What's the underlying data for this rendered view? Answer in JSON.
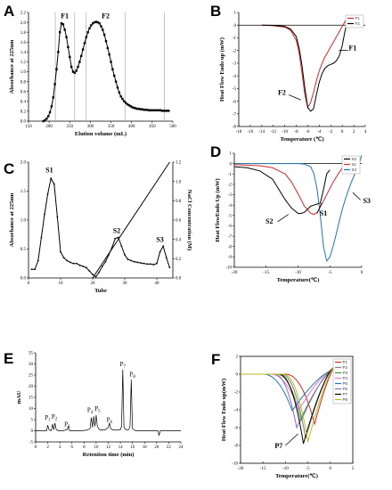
{
  "chart_data": [
    {
      "id": "A",
      "panel_label": "A",
      "type": "scatter",
      "xlabel": "Elution volume (mL)",
      "ylabel": "Absorbance at 225nm",
      "xlim": [
        150,
        500
      ],
      "ylim": [
        0,
        2.2
      ],
      "xticks": [
        150,
        200,
        250,
        300,
        350,
        400,
        450,
        500
      ],
      "yticks": [
        0.0,
        0.2,
        0.4,
        0.6,
        0.8,
        1.0,
        1.2,
        1.4,
        1.6,
        1.8,
        2.0,
        2.2
      ],
      "vlines": [
        215,
        262,
        290,
        385,
        480
      ],
      "annotations": [
        {
          "text": "F1",
          "x": 238,
          "y": 2.08
        },
        {
          "text": "F2",
          "x": 337,
          "y": 2.08
        }
      ],
      "series": [
        {
          "color": "#000000",
          "x": [
            186,
            190,
            194,
            198,
            202,
            206,
            210,
            214,
            218,
            222,
            226,
            230,
            234,
            238,
            242,
            246,
            250,
            254,
            258,
            262,
            266,
            270,
            274,
            278,
            282,
            286,
            290,
            294,
            298,
            302,
            306,
            310,
            314,
            318,
            322,
            326,
            330,
            334,
            338,
            342,
            346,
            350,
            354,
            358,
            362,
            366,
            370,
            374,
            378,
            382,
            386,
            390,
            394,
            398,
            402,
            406,
            410,
            414,
            418,
            422,
            426,
            430,
            434,
            438,
            442,
            446,
            450,
            454,
            458,
            462,
            466,
            470,
            474,
            478,
            482,
            486,
            490
          ],
          "y": [
            0.0,
            0.02,
            0.05,
            0.1,
            0.18,
            0.3,
            0.48,
            0.75,
            1.05,
            1.4,
            1.8,
            1.98,
            1.96,
            1.85,
            1.7,
            1.5,
            1.3,
            1.1,
            1.0,
            0.98,
            1.02,
            1.1,
            1.2,
            1.32,
            1.45,
            1.58,
            1.7,
            1.8,
            1.88,
            1.94,
            1.98,
            2.0,
            2.01,
            2.0,
            1.98,
            1.92,
            1.85,
            1.75,
            1.62,
            1.48,
            1.35,
            1.2,
            1.05,
            0.92,
            0.8,
            0.68,
            0.58,
            0.5,
            0.45,
            0.4,
            0.37,
            0.34,
            0.32,
            0.3,
            0.28,
            0.27,
            0.26,
            0.25,
            0.25,
            0.24,
            0.24,
            0.23,
            0.23,
            0.23,
            0.22,
            0.22,
            0.22,
            0.22,
            0.22,
            0.22,
            0.22,
            0.22,
            0.21,
            0.21,
            0.21,
            0.21,
            0.21
          ]
        }
      ]
    },
    {
      "id": "B",
      "panel_label": "B",
      "type": "line",
      "xlabel": "Temperature (℃)",
      "ylabel": "Heat Flow Endo up (mW)",
      "xlim": [
        -18,
        4
      ],
      "ylim": [
        -8,
        1
      ],
      "xticks": [
        -18,
        -16,
        -14,
        -12,
        -10,
        -8,
        -6,
        -4,
        -2,
        0,
        2,
        4
      ],
      "yticks": [
        -8,
        -7,
        -6,
        -5,
        -4,
        -3,
        -2,
        -1,
        0,
        1
      ],
      "legend": [
        "F1",
        "F2"
      ],
      "legend_position": "top-right",
      "annotations": [
        {
          "text": "F1",
          "x": 1.8,
          "y": -2.0
        },
        {
          "text": "F2",
          "x": -10.5,
          "y": -5.5
        }
      ],
      "series": [
        {
          "name": "F1",
          "color": "#d62728",
          "x": [
            -14,
            -12,
            -10,
            -9,
            -8,
            -7.5,
            -7,
            -6.5,
            -6,
            -5.5,
            -5,
            -4.5,
            -4,
            -3.5,
            -3,
            -2.5,
            -2,
            -1.5,
            -1,
            -0.5,
            0,
            0.5,
            1
          ],
          "y": [
            0,
            -0.05,
            -0.15,
            -0.4,
            -1.2,
            -2.2,
            -3.8,
            -5.5,
            -6.5,
            -6.1,
            -5.3,
            -4.4,
            -3.6,
            -3.0,
            -2.5,
            -2.1,
            -1.7,
            -1.3,
            -0.9,
            -0.5,
            -0.1,
            0.3,
            0.6
          ]
        },
        {
          "name": "F2",
          "color": "#000000",
          "x": [
            -14,
            -12,
            -10,
            -9,
            -8,
            -7.5,
            -7,
            -6.5,
            -6,
            -5.5,
            -5,
            -4.5,
            -4,
            -3.5,
            -3,
            -2.5,
            -2,
            -1.5,
            -1,
            -0.5,
            0,
            0.5,
            1
          ],
          "y": [
            0,
            -0.02,
            -0.1,
            -0.3,
            -0.9,
            -1.8,
            -3.2,
            -5.0,
            -6.5,
            -6.8,
            -6.6,
            -5.5,
            -4.5,
            -3.8,
            -3.4,
            -3.2,
            -3.1,
            -3.0,
            -2.8,
            -2.4,
            -1.6,
            -0.4,
            0.4
          ]
        }
      ]
    },
    {
      "id": "C",
      "panel_label": "C",
      "type": "line",
      "xlabel": "Tube",
      "ylabel": "Absorbance at 225nm",
      "ylabel_right": "NaCl Concentration (M)",
      "xlim": [
        0,
        45
      ],
      "ylim": [
        0,
        2.0
      ],
      "ylim_right": [
        0,
        1.2
      ],
      "xticks": [
        0,
        10,
        20,
        30,
        40
      ],
      "yticks": [
        0.0,
        0.5,
        1.0,
        1.5,
        2.0
      ],
      "yticks_right": [
        0.0,
        0.2,
        0.4,
        0.6,
        0.8,
        1.0,
        1.2
      ],
      "annotations": [
        {
          "text": "S1",
          "x": 6.5,
          "y": 1.82
        },
        {
          "text": "S2",
          "x": 27.5,
          "y": 0.78
        },
        {
          "text": "S3",
          "x": 41.0,
          "y": 0.62
        }
      ],
      "series": [
        {
          "color": "#000000",
          "x": [
            1,
            2,
            3,
            4,
            5,
            6,
            7,
            8,
            9,
            10,
            11,
            12,
            13,
            14,
            15,
            16,
            17,
            18,
            19,
            20,
            21,
            22,
            23,
            24,
            25,
            26,
            27,
            28,
            29,
            30,
            31,
            32,
            33,
            34,
            35,
            36,
            37,
            38,
            39,
            40,
            41,
            42,
            43,
            44
          ],
          "y": [
            0.15,
            0.15,
            0.3,
            0.7,
            1.1,
            1.45,
            1.72,
            1.62,
            1.05,
            0.45,
            0.35,
            0.3,
            0.27,
            0.25,
            0.25,
            0.22,
            0.2,
            0.18,
            0.12,
            0.06,
            0.02,
            0.1,
            0.2,
            0.28,
            0.4,
            0.52,
            0.68,
            0.7,
            0.55,
            0.4,
            0.32,
            0.3,
            0.28,
            0.27,
            0.26,
            0.25,
            0.24,
            0.24,
            0.23,
            0.25,
            0.45,
            0.55,
            0.35,
            0.18
          ]
        },
        {
          "color": "#000000",
          "axis": "right",
          "x": [
            20,
            44
          ],
          "y": [
            0,
            1.2
          ]
        }
      ]
    },
    {
      "id": "D",
      "panel_label": "D",
      "type": "line",
      "xlabel": "Temperature(℃)",
      "ylabel": "Heat FlowEndo Up (mW)",
      "xlim": [
        -20,
        0
      ],
      "ylim": [
        -10,
        1
      ],
      "xticks": [
        -20,
        -15,
        -10,
        -5,
        0
      ],
      "yticks": [
        -10,
        -9,
        -8,
        -7,
        -6,
        -5,
        -4,
        -3,
        -2,
        -1,
        0,
        1
      ],
      "legend": [
        "S2",
        "S1",
        "S3"
      ],
      "legend_position": "top-right",
      "annotations": [
        {
          "text": "S2",
          "x": -14.5,
          "y": -5.8
        },
        {
          "text": "S1",
          "x": -6.0,
          "y": -5.0
        },
        {
          "text": "S3",
          "x": 0.8,
          "y": -3.8
        }
      ],
      "series": [
        {
          "name": "S2",
          "color": "#000000",
          "x": [
            -20,
            -18,
            -16,
            -14,
            -13,
            -12,
            -11,
            -10,
            -9.5,
            -9,
            -8.5,
            -8,
            -7.5,
            -7,
            -6.5,
            -6,
            -5.5,
            -5
          ],
          "y": [
            -0.3,
            -0.4,
            -0.7,
            -1.5,
            -2.5,
            -3.5,
            -4.3,
            -4.8,
            -4.8,
            -4.7,
            -4.4,
            -4.1,
            -4.0,
            -3.9,
            -3.8,
            -2.5,
            -1.0,
            -0.6
          ]
        },
        {
          "name": "S1",
          "color": "#d62728",
          "x": [
            -20,
            -16,
            -14,
            -12,
            -11,
            -10,
            -9,
            -8,
            -7.5,
            -7,
            -6.5,
            -6,
            -5.5,
            -5,
            -4.5,
            -4,
            -3.5,
            -3,
            -2.5,
            -2
          ],
          "y": [
            -0.1,
            -0.2,
            -0.4,
            -1.0,
            -1.8,
            -2.9,
            -4.1,
            -4.8,
            -4.9,
            -4.7,
            -4.2,
            -3.6,
            -3.0,
            -2.4,
            -1.8,
            -1.3,
            -0.8,
            -0.4,
            -0.15,
            0
          ]
        },
        {
          "name": "S3",
          "color": "#1f77b4",
          "x": [
            -20,
            -15,
            -10,
            -9,
            -8,
            -7.5,
            -7,
            -6.5,
            -6,
            -5.5,
            -5,
            -4.5,
            -4,
            -3.5,
            -3,
            -2.5,
            -2,
            -1.5,
            -1,
            -0.5,
            0
          ],
          "y": [
            0,
            0,
            0,
            -0.05,
            -0.3,
            -1.0,
            -2.5,
            -5.0,
            -8.0,
            -9.4,
            -9.0,
            -8.0,
            -6.8,
            -5.5,
            -4.3,
            -3.3,
            -2.4,
            -1.6,
            -0.9,
            -0.2,
            0.8
          ]
        }
      ]
    },
    {
      "id": "E",
      "panel_label": "E",
      "type": "line",
      "xlabel": "Retention time (min)",
      "ylabel": "mAU",
      "xlim": [
        0,
        24
      ],
      "ylim": [
        -5,
        35
      ],
      "xticks": [
        0,
        2,
        4,
        6,
        8,
        10,
        12,
        14,
        16,
        18,
        20,
        22,
        24
      ],
      "yticks": [
        -5,
        0,
        5,
        10,
        15,
        20,
        25,
        30,
        35
      ],
      "annotations": [
        {
          "text": "P",
          "sub": "1",
          "x": 2.0,
          "y": 5.0
        },
        {
          "text": "P",
          "sub": "2",
          "x": 3.1,
          "y": 5.5
        },
        {
          "text": "P",
          "sub": "3",
          "x": 5.2,
          "y": 2.0
        },
        {
          "text": "P",
          "sub": "4",
          "x": 9.0,
          "y": 8.5
        },
        {
          "text": "P",
          "sub": "5",
          "x": 10.2,
          "y": 9.0
        },
        {
          "text": "P",
          "sub": "6",
          "x": 12.2,
          "y": 4.0
        },
        {
          "text": "P",
          "sub": "7",
          "x": 14.4,
          "y": 29.0
        },
        {
          "text": "P",
          "sub": "8",
          "x": 16.0,
          "y": 24.5
        }
      ],
      "series": [
        {
          "color": "#000000",
          "x": [
            0,
            1.8,
            2.0,
            2.2,
            2.6,
            2.8,
            3.0,
            3.2,
            3.4,
            3.8,
            4.5,
            5.2,
            5.4,
            5.6,
            6.5,
            7.5,
            8.5,
            9.0,
            9.2,
            9.4,
            9.6,
            9.8,
            10.0,
            10.2,
            10.4,
            10.6,
            11.0,
            11.5,
            12.0,
            12.2,
            12.4,
            12.8,
            13.5,
            14.0,
            14.2,
            14.4,
            14.6,
            15.0,
            15.4,
            15.6,
            15.8,
            16.0,
            16.5,
            17.5,
            18.5,
            19.5,
            20.2,
            20.4,
            20.6,
            21.0,
            21.5,
            22.5,
            24
          ],
          "y": [
            0,
            0,
            2.5,
            0.5,
            0,
            3.0,
            0.5,
            3.5,
            0.5,
            0,
            0,
            0.5,
            2.0,
            0,
            0,
            0,
            0.3,
            1.0,
            6.0,
            1.5,
            6.5,
            2.0,
            7.0,
            2.0,
            1.0,
            0.5,
            0.3,
            0.5,
            1.5,
            3.5,
            1.0,
            0.3,
            0.3,
            0.5,
            2.0,
            27.5,
            1.5,
            0.3,
            0.5,
            2.0,
            23.0,
            1.0,
            0,
            0,
            0,
            0,
            0,
            -2.0,
            0,
            0,
            0,
            0,
            0
          ]
        }
      ]
    },
    {
      "id": "F",
      "panel_label": "F",
      "type": "line",
      "xlabel": "Temperature(℃)",
      "ylabel": "Heat Flow Endo up(mW)",
      "xlim": [
        -20,
        5
      ],
      "ylim": [
        -10,
        2
      ],
      "xticks": [
        -20,
        -15,
        -10,
        -5,
        0,
        5
      ],
      "yticks": [
        -10,
        -8,
        -6,
        -4,
        -2,
        0,
        2
      ],
      "legend": [
        "P1",
        "P2",
        "P3",
        "P4",
        "P5",
        "P6",
        "P7",
        "P8"
      ],
      "legend_position": "top-right",
      "annotations": [
        {
          "text": "P7",
          "x": -11.5,
          "y": -8.3
        }
      ],
      "series": [
        {
          "name": "P1",
          "color": "#d62728",
          "min_x": -3.5,
          "min_y": -5.6,
          "x0": -10.0,
          "x1": 1.5,
          "end_y": 1.2
        },
        {
          "name": "P2",
          "color": "#7f7f7f",
          "min_x": -5.5,
          "min_y": -7.2,
          "x0": -11.0,
          "x1": 0.8,
          "end_y": 0.8
        },
        {
          "name": "P3",
          "color": "#2ca02c",
          "min_x": -6.5,
          "min_y": -5.2,
          "x0": -12.0,
          "x1": 0.6,
          "end_y": 0.6
        },
        {
          "name": "P4",
          "color": "#e377c2",
          "min_x": -7.0,
          "min_y": -4.0,
          "x0": -13.5,
          "x1": 0.4,
          "end_y": 0.5
        },
        {
          "name": "P5",
          "color": "#1f77b4",
          "min_x": -8.5,
          "min_y": -4.1,
          "x0": -15.0,
          "x1": 0.0,
          "end_y": 0.3
        },
        {
          "name": "P6",
          "color": "#9467bd",
          "min_x": -7.5,
          "min_y": -6.0,
          "x0": -12.5,
          "x1": 0.5,
          "end_y": 0.4
        },
        {
          "name": "P7",
          "color": "#000000",
          "min_x": -6.0,
          "min_y": -7.8,
          "x0": -11.5,
          "x1": 0.7,
          "end_y": 0.7
        },
        {
          "name": "P8",
          "color": "#bcbd22",
          "min_x": -5.0,
          "min_y": -7.6,
          "x0": -10.5,
          "x1": 1.2,
          "end_y": 1.0
        }
      ]
    }
  ]
}
